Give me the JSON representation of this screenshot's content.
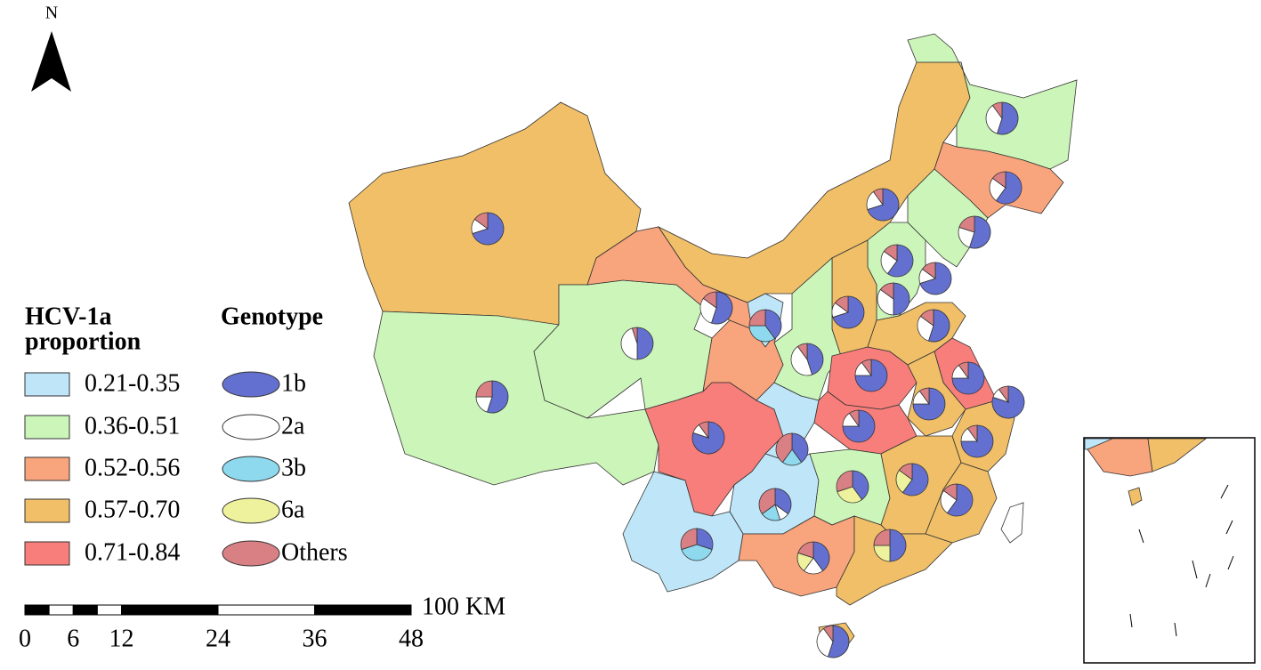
{
  "north_label": "N",
  "legend_hcv": {
    "title_lines": [
      "HCV-1a",
      "proportion"
    ],
    "items": [
      {
        "label": "0.21-0.35",
        "color": "#bfe6f8"
      },
      {
        "label": "0.36-0.51",
        "color": "#ccf5b9"
      },
      {
        "label": "0.52-0.56",
        "color": "#f8a47c"
      },
      {
        "label": "0.57-0.70",
        "color": "#f0bf68"
      },
      {
        "label": "0.71-0.84",
        "color": "#f77e7b"
      }
    ]
  },
  "legend_genotype": {
    "title": "Genotype",
    "items": [
      {
        "label": "1b",
        "color": "#6470cf"
      },
      {
        "label": "2a",
        "color": "#ffffff"
      },
      {
        "label": "3b",
        "color": "#8fd9ee"
      },
      {
        "label": "6a",
        "color": "#eef29c"
      },
      {
        "label": "Others",
        "color": "#d98084"
      }
    ]
  },
  "scale_bar": {
    "unit_label": "100 KM",
    "ticks": [
      0,
      6,
      12,
      24,
      36,
      48
    ]
  },
  "pies": [
    [
      70,
      15,
      0,
      0,
      15
    ],
    [
      55,
      20,
      0,
      0,
      25
    ],
    [
      50,
      45,
      0,
      0,
      5
    ],
    [
      55,
      30,
      0,
      0,
      15
    ],
    [
      40,
      0,
      35,
      0,
      25
    ],
    [
      70,
      20,
      0,
      0,
      10
    ],
    [
      55,
      35,
      0,
      0,
      10
    ],
    [
      60,
      25,
      0,
      0,
      15
    ],
    [
      55,
      25,
      0,
      0,
      20
    ],
    [
      60,
      25,
      0,
      0,
      15
    ],
    [
      70,
      15,
      0,
      0,
      15
    ],
    [
      50,
      35,
      0,
      0,
      15
    ],
    [
      70,
      15,
      0,
      0,
      15
    ],
    [
      55,
      30,
      0,
      0,
      15
    ],
    [
      45,
      45,
      0,
      0,
      10
    ],
    [
      75,
      15,
      0,
      0,
      10
    ],
    [
      75,
      15,
      0,
      0,
      10
    ],
    [
      80,
      10,
      0,
      0,
      10
    ],
    [
      75,
      15,
      0,
      0,
      10
    ],
    [
      75,
      15,
      0,
      0,
      10
    ],
    [
      80,
      10,
      0,
      0,
      10
    ],
    [
      40,
      0,
      20,
      0,
      40
    ],
    [
      75,
      15,
      0,
      0,
      10
    ],
    [
      40,
      0,
      0,
      30,
      30
    ],
    [
      60,
      0,
      0,
      25,
      15
    ],
    [
      35,
      10,
      20,
      0,
      35
    ],
    [
      60,
      25,
      0,
      0,
      15
    ],
    [
      30,
      0,
      40,
      0,
      30
    ],
    [
      40,
      20,
      0,
      20,
      20
    ],
    [
      50,
      0,
      0,
      25,
      25
    ],
    [
      55,
      35,
      0,
      0,
      10
    ]
  ]
}
